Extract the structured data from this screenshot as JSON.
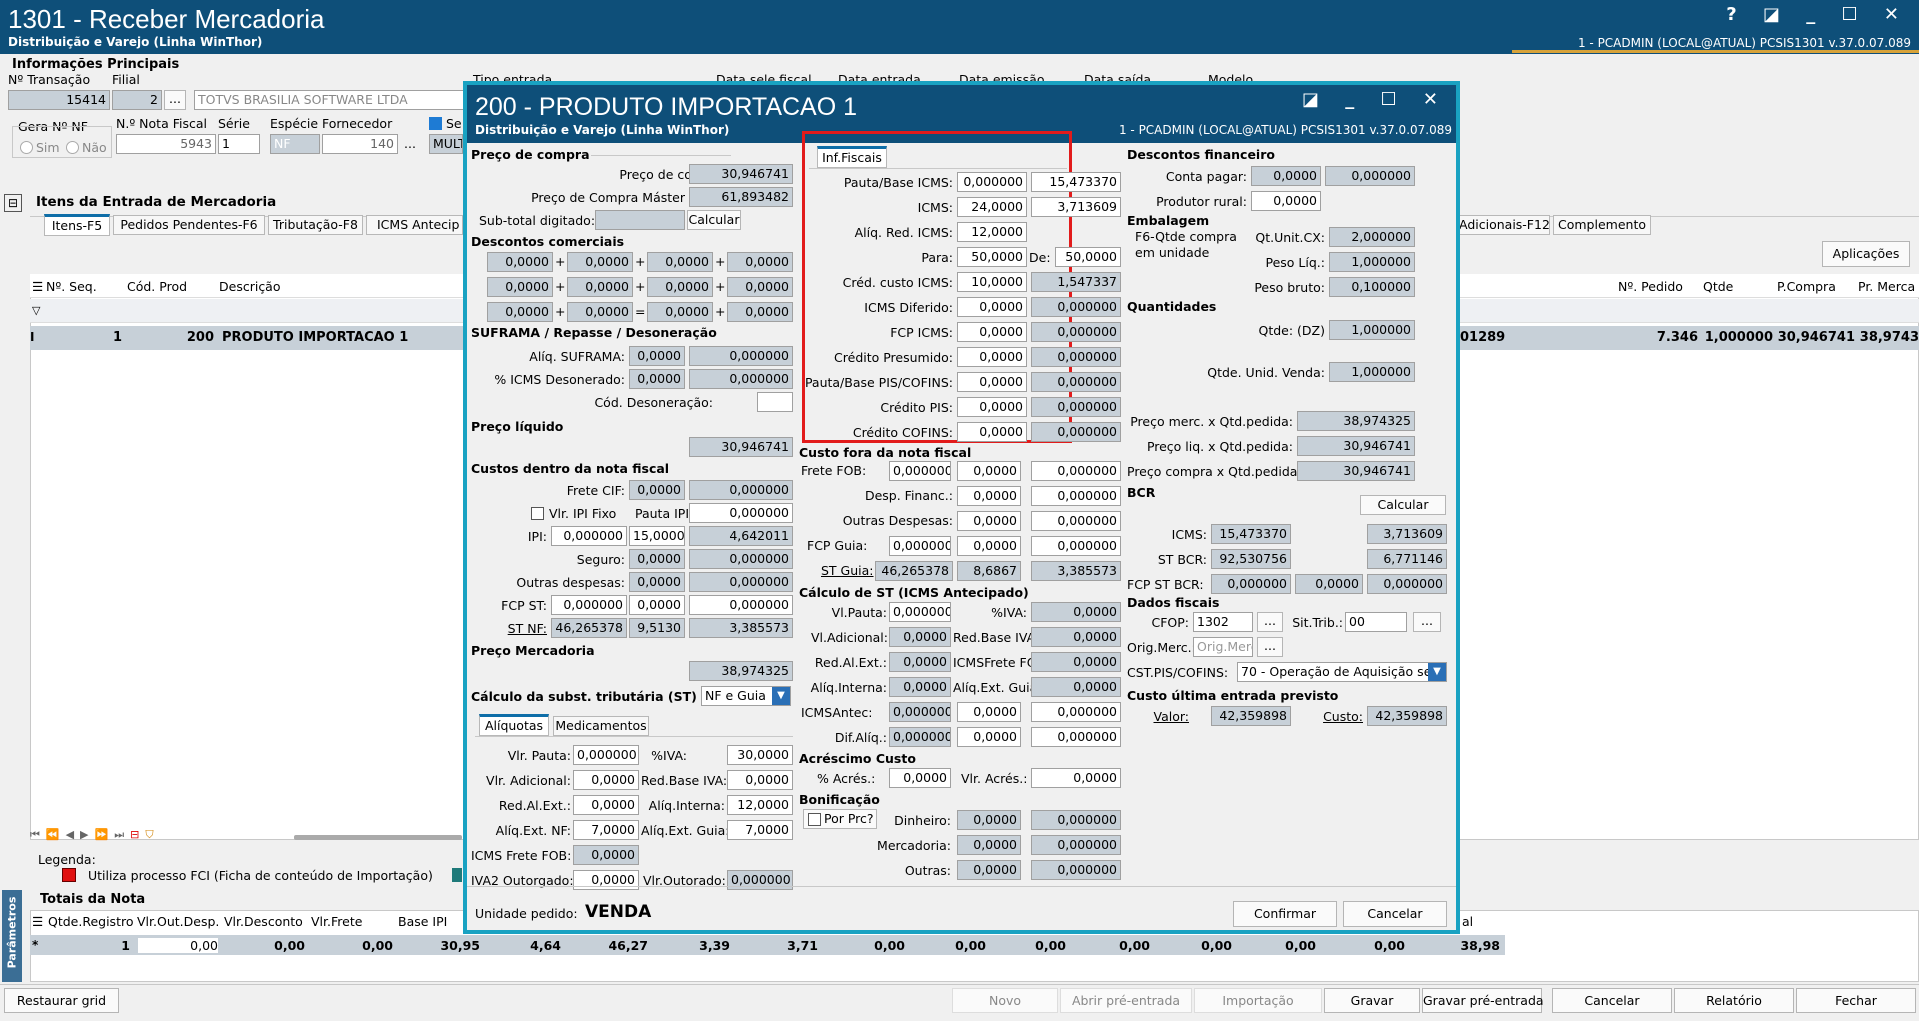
{
  "app": {
    "title": "1301 - Receber Mercadoria",
    "subtitle": "Distribuição e Varejo (Linha WinThor)",
    "session": "1 - PCADMIN (LOCAL@ATUAL)   PCSIS1301  v.37.0.07.089",
    "win_buttons": "? ◪ _ ☐ ✕"
  },
  "main": {
    "info_title": "Informações Principais",
    "lbl_ntrans": "Nº Transação",
    "lbl_filial": "Filial",
    "ntrans": "15414",
    "filial": "2",
    "empresa": "TOTVS BRASILIA SOFTWARE LTDA",
    "lbl_tipo": "Tipo entrada",
    "lbl_datafiscal": "Data sele fiscal",
    "lbl_dataentrada": "Data entrada",
    "lbl_dataemissao": "Data emissão",
    "lbl_datasaida": "Data saída",
    "lbl_modelo": "Modelo",
    "lbl_gera": "Gera Nº NF",
    "sim": "Sim",
    "nao": "Não",
    "lbl_nnota": "N.º Nota Fiscal",
    "lbl_serie": "Série",
    "lbl_especie": "Espécie",
    "lbl_fornecedor": "Fornecedor",
    "nnota": "5943",
    "serie": "1",
    "especie": "NF",
    "fornecedor": "140",
    "se": "Se",
    "mult": "MULT",
    "ellipsis": "...",
    "itens_title": "Itens da Entrada de Mercadoria",
    "tabs": [
      "Itens-F5",
      "Pedidos Pendentes-F6",
      "Tributação-F8",
      "ICMS Antecip"
    ],
    "tabs_right": [
      "Adicionais-F12",
      "Complemento"
    ],
    "aplicacoes": "Aplicações",
    "cols": [
      "Nº. Seq.",
      "Cód. Prod",
      "Descrição"
    ],
    "cols_right": [
      "Nº. Pedido",
      "Qtde",
      "P.Compra",
      "Pr. Merca"
    ],
    "row": {
      "seq": "1",
      "cod": "200",
      "desc": "PRODUTO IMPORTACAO 1",
      "ref": "01289",
      "pedido": "7.346",
      "qtde": "1,000000",
      "pcompra": "30,946741",
      "prmerc": "38,9743"
    },
    "legenda": "Legenda:",
    "legenda_item": "Utiliza processo FCI (Ficha de conteúdo de Importação)",
    "totais_title": "Totais da Nota",
    "totais_cols": [
      "Qtde.Registro",
      "Vlr.Out.Desp.",
      "Vlr.Desconto",
      "Vlr.Frete",
      "Base IPI"
    ],
    "totais_vals": [
      "1",
      "0,00",
      "0,00",
      "0,00",
      "30,95",
      "4,64",
      "46,27",
      "3,39",
      "3,71",
      "0,00",
      "0,00",
      "0,00",
      "0,00",
      "0,00",
      "0,00",
      "0,00",
      "38,98"
    ],
    "totais_lastcol": "al",
    "parametros": "Parâmetros",
    "bottom_buttons": [
      "Restaurar grid",
      "Novo",
      "Abrir pré-entrada",
      "Importação",
      "Gravar",
      "Gravar pré-entrada",
      "Cancelar",
      "Relatório",
      "Fechar"
    ]
  },
  "modal": {
    "title": "200 -  PRODUTO IMPORTACAO 1",
    "subtitle": "Distribuição e Varejo (Linha WinThor)",
    "session": "1 - PCADMIN (LOCAL@ATUAL)   PCSIS1301  v.37.0.07.089",
    "win_buttons": "◪ _ ☐ ✕",
    "preco_compra_title": "Preço de compra",
    "lbl_preco_compra": "Preço de compra:",
    "preco_compra": "30,946741",
    "lbl_preco_master": "Preço de Compra Máster",
    "preco_master": "61,893482",
    "lbl_subtotal": "Sub-total digitado:",
    "calcular": "Calcular",
    "desc_com_title": "Descontos comerciais",
    "desc_vals": [
      "0,0000",
      "0,0000",
      "0,0000",
      "0,0000",
      "0,0000",
      "0,0000",
      "0,0000",
      "0,0000",
      "0,0000",
      "0,0000",
      "0,0000",
      "0,0000"
    ],
    "ops": [
      "+",
      "+",
      "+",
      "+",
      "+",
      "+",
      "+",
      "=",
      "+"
    ],
    "suframa_title": "SUFRAMA / Repasse / Desoneração",
    "lbl_aliq_suframa": "Alíq. SUFRAMA:",
    "aliq_suframa": [
      "0,0000",
      "0,000000"
    ],
    "lbl_icms_deson": "% ICMS Desonerado:",
    "icms_deson": [
      "0,0000",
      "0,000000"
    ],
    "lbl_cod_deson": "Cód. Desoneração:",
    "preco_liq_title": "Preço líquido",
    "preco_liq": "30,946741",
    "custos_dentro_title": "Custos dentro da nota fiscal",
    "lbl_frete_cif": "Frete CIF:",
    "frete_cif": [
      "0,0000",
      "0,000000"
    ],
    "lbl_ipi_fixo": "Vlr. IPI Fixo",
    "lbl_pauta_ipi": "Pauta IPI:",
    "pauta_ipi": "0,000000",
    "lbl_ipi": "IPI:",
    "ipi": [
      "0,000000",
      "15,0000",
      "4,642011"
    ],
    "lbl_seguro": "Seguro:",
    "seguro": [
      "0,0000",
      "0,000000"
    ],
    "lbl_outras": "Outras despesas:",
    "outras": [
      "0,0000",
      "0,000000"
    ],
    "lbl_fcp_st": "FCP ST:",
    "fcp_st": [
      "0,000000",
      "0,0000",
      "0,000000"
    ],
    "lbl_st_nf": "ST NF:",
    "st_nf": [
      "46,265378",
      "9,5130",
      "3,385573"
    ],
    "preco_merc_title": "Preço Mercadoria",
    "preco_merc": "38,974325",
    "calc_st_title": "Cálculo da subst. tributária (ST)",
    "calc_st_sel": "NF e Guia",
    "sub_tabs": [
      "Alíquotas",
      "Medicamentos"
    ],
    "lbl_vlr_pauta": "Vlr. Pauta:",
    "vlr_pauta": "0,000000",
    "lbl_iva": "%IVA:",
    "iva": "30,0000",
    "lbl_vlr_adic": "Vlr. Adicional:",
    "vlr_adic": "0,0000",
    "lbl_red_iva": "Red.Base IVA:",
    "red_iva": "0,0000",
    "lbl_red_al": "Red.Al.Ext.:",
    "red_al": "0,0000",
    "lbl_aliq_int": "Alíq.Interna:",
    "aliq_int": "12,0000",
    "lbl_aliq_nf": "Alíq.Ext. NF:",
    "aliq_nf": "7,0000",
    "lbl_aliq_guia": "Alíq.Ext. Guia:",
    "aliq_guia": "7,0000",
    "lbl_icms_frete": "ICMS Frete FOB:",
    "icms_frete": "0,0000",
    "lbl_iva2": "IVA2 Outorgado:",
    "iva2": "0,0000",
    "lbl_vlr_out": "Vlr.Outorado:",
    "vlr_out": "0,000000",
    "inf_tab": "Inf.Fiscais",
    "fiscais": [
      {
        "l": "Pauta/Base ICMS:",
        "a": "0,000000",
        "b": "15,473370"
      },
      {
        "l": "ICMS:",
        "a": "24,0000",
        "b": "3,713609"
      },
      {
        "l": "Alíq. Red. ICMS:",
        "a": "12,0000"
      },
      {
        "l": "Para:",
        "a": "50,0000",
        "c": "De:",
        "b": "50,0000"
      },
      {
        "l": "Créd. custo ICMS:",
        "a": "10,0000",
        "b": "1,547337"
      },
      {
        "l": "ICMS Diferido:",
        "a": "0,0000",
        "b": "0,000000"
      },
      {
        "l": "FCP ICMS:",
        "a": "0,0000",
        "b": "0,000000"
      },
      {
        "l": "Crédito Presumido:",
        "a": "0,0000",
        "b": "0,000000"
      },
      {
        "l": "Pauta/Base PIS/COFINS:",
        "a": "0,0000",
        "b": "0,000000"
      },
      {
        "l": "Crédito PIS:",
        "a": "0,0000",
        "b": "0,000000"
      },
      {
        "l": "Crédito COFINS:",
        "a": "0,0000",
        "b": "0,000000"
      }
    ],
    "custo_fora_title": "Custo fora da nota fiscal",
    "lbl_frete_fob": "Frete FOB:",
    "frete_fob": [
      "0,000000",
      "0,0000",
      "0,000000"
    ],
    "lbl_desp_fin": "Desp. Financ.:",
    "desp_fin": [
      "0,0000",
      "0,000000"
    ],
    "lbl_outras_desp": "Outras Despesas:",
    "outras_desp": [
      "0,0000",
      "0,000000"
    ],
    "lbl_fcp_guia": "FCP Guia:",
    "fcp_guia": [
      "0,000000",
      "0,0000",
      "0,000000"
    ],
    "lbl_st_guia": "ST Guia:",
    "st_guia": [
      "46,265378",
      "8,6867",
      "3,385573"
    ],
    "calc_st2_title": "Cálculo de ST (ICMS Antecipado)",
    "lbl_vl_pauta": "Vl.Pauta:",
    "vl_pauta": "0,000000",
    "lbl_iva_b": "%IVA:",
    "iva_b": "0,0000",
    "lbl_vl_adic": "Vl.Adicional:",
    "vl_adic": "0,0000",
    "lbl_red_iva_b": "Red.Base IVA:",
    "red_iva_b": "0,0000",
    "lbl_red_al_b": "Red.Al.Ext.:",
    "red_al_b": "0,0000",
    "lbl_icms_frete_b": "ICMSFrete FOB:",
    "icms_frete_b": "0,0000",
    "lbl_aliq_int_b": "Alíq.Interna:",
    "aliq_int_b": "0,0000",
    "lbl_aliq_guia_b": "Alíq.Ext. Guia:",
    "aliq_guia_b": "0,0000",
    "lbl_icms_antec": "ICMSAntec:",
    "icms_antec": [
      "0,000000",
      "0,0000",
      "0,000000"
    ],
    "lbl_dif_aliq": "Dif.Alíq.:",
    "dif_aliq": [
      "0,000000",
      "0,0000",
      "0,000000"
    ],
    "acresc_title": "Acréscimo Custo",
    "lbl_acres": "% Acrés.:",
    "acres": "0,0000",
    "lbl_vlr_acres": "Vlr. Acrés.:",
    "vlr_acres": "0,0000",
    "bonif_title": "Bonificação",
    "lbl_por_prc": "Por Prc?",
    "lbl_dinheiro": "Dinheiro:",
    "dinheiro": [
      "0,0000",
      "0,000000"
    ],
    "lbl_mercadoria": "Mercadoria:",
    "mercadoria": [
      "0,0000",
      "0,000000"
    ],
    "lbl_outras_b": "Outras:",
    "outras_b": [
      "0,0000",
      "0,000000"
    ],
    "desc_fin_title": "Descontos financeiro",
    "lbl_conta_pagar": "Conta pagar:",
    "conta_pagar": [
      "0,0000",
      "0,000000"
    ],
    "lbl_prod_rural": "Produtor rural:",
    "prod_rural": "0,0000",
    "embalagem_title": "Embalagem",
    "emb_note1": "F6-Qtde compra",
    "emb_note2": "em unidade",
    "lbl_qt_unit": "Qt.Unit.CX:",
    "qt_unit": "2,000000",
    "lbl_peso_liq": "Peso Líq.:",
    "peso_liq": "1,000000",
    "lbl_peso_bruto": "Peso bruto:",
    "peso_bruto": "0,100000",
    "quant_title": "Quantidades",
    "lbl_qtde_dz": "Qtde: (DZ)",
    "qtde_dz": "1,000000",
    "lbl_qtde_unid": "Qtde. Unid. Venda:",
    "qtde_unid": "1,000000",
    "lbl_pm_qp": "Preço merc. x Qtd.pedida:",
    "pm_qp": "38,974325",
    "lbl_pl_qp": "Preço liq. x Qtd.pedida:",
    "pl_qp": "30,946741",
    "lbl_pc_qp": "Preço compra x Qtd.pedida:",
    "pc_qp": "30,946741",
    "bcr_title": "BCR",
    "bcr_calcular": "Calcular",
    "lbl_bcr_icms": "ICMS:",
    "bcr_icms": [
      "15,473370",
      "3,713609"
    ],
    "lbl_bcr_st": "ST BCR:",
    "bcr_st": [
      "92,530756",
      "6,771146"
    ],
    "lbl_bcr_fcp": "FCP ST BCR:",
    "bcr_fcp": [
      "0,000000",
      "0,0000",
      "0,000000"
    ],
    "dados_title": "Dados fiscais",
    "lbl_cfop": "CFOP:",
    "cfop": "1302",
    "lbl_sit_trib": "Sit.Trib.:",
    "sit_trib": "00",
    "lbl_orig": "Orig.Merc.:",
    "orig_ph": "Orig.Merc",
    "lbl_cst": "CST.PIS/COFINS:",
    "cst": "70 - Operação de Aquisição ser",
    "custo_ult_title": "Custo última entrada previsto",
    "lbl_valor": "Valor:",
    "valor": "42,359898",
    "lbl_custo": "Custo:",
    "custo": "42,359898",
    "lbl_unidade": "Unidade pedido:",
    "unidade": "VENDA",
    "confirmar": "Confirmar",
    "cancelar": "Cancelar"
  },
  "colors": {
    "titlebar": "#0e4f79",
    "modal_border": "#19a2c2",
    "highlight": "#e21b1b",
    "readonly": "#c7d0d8"
  }
}
